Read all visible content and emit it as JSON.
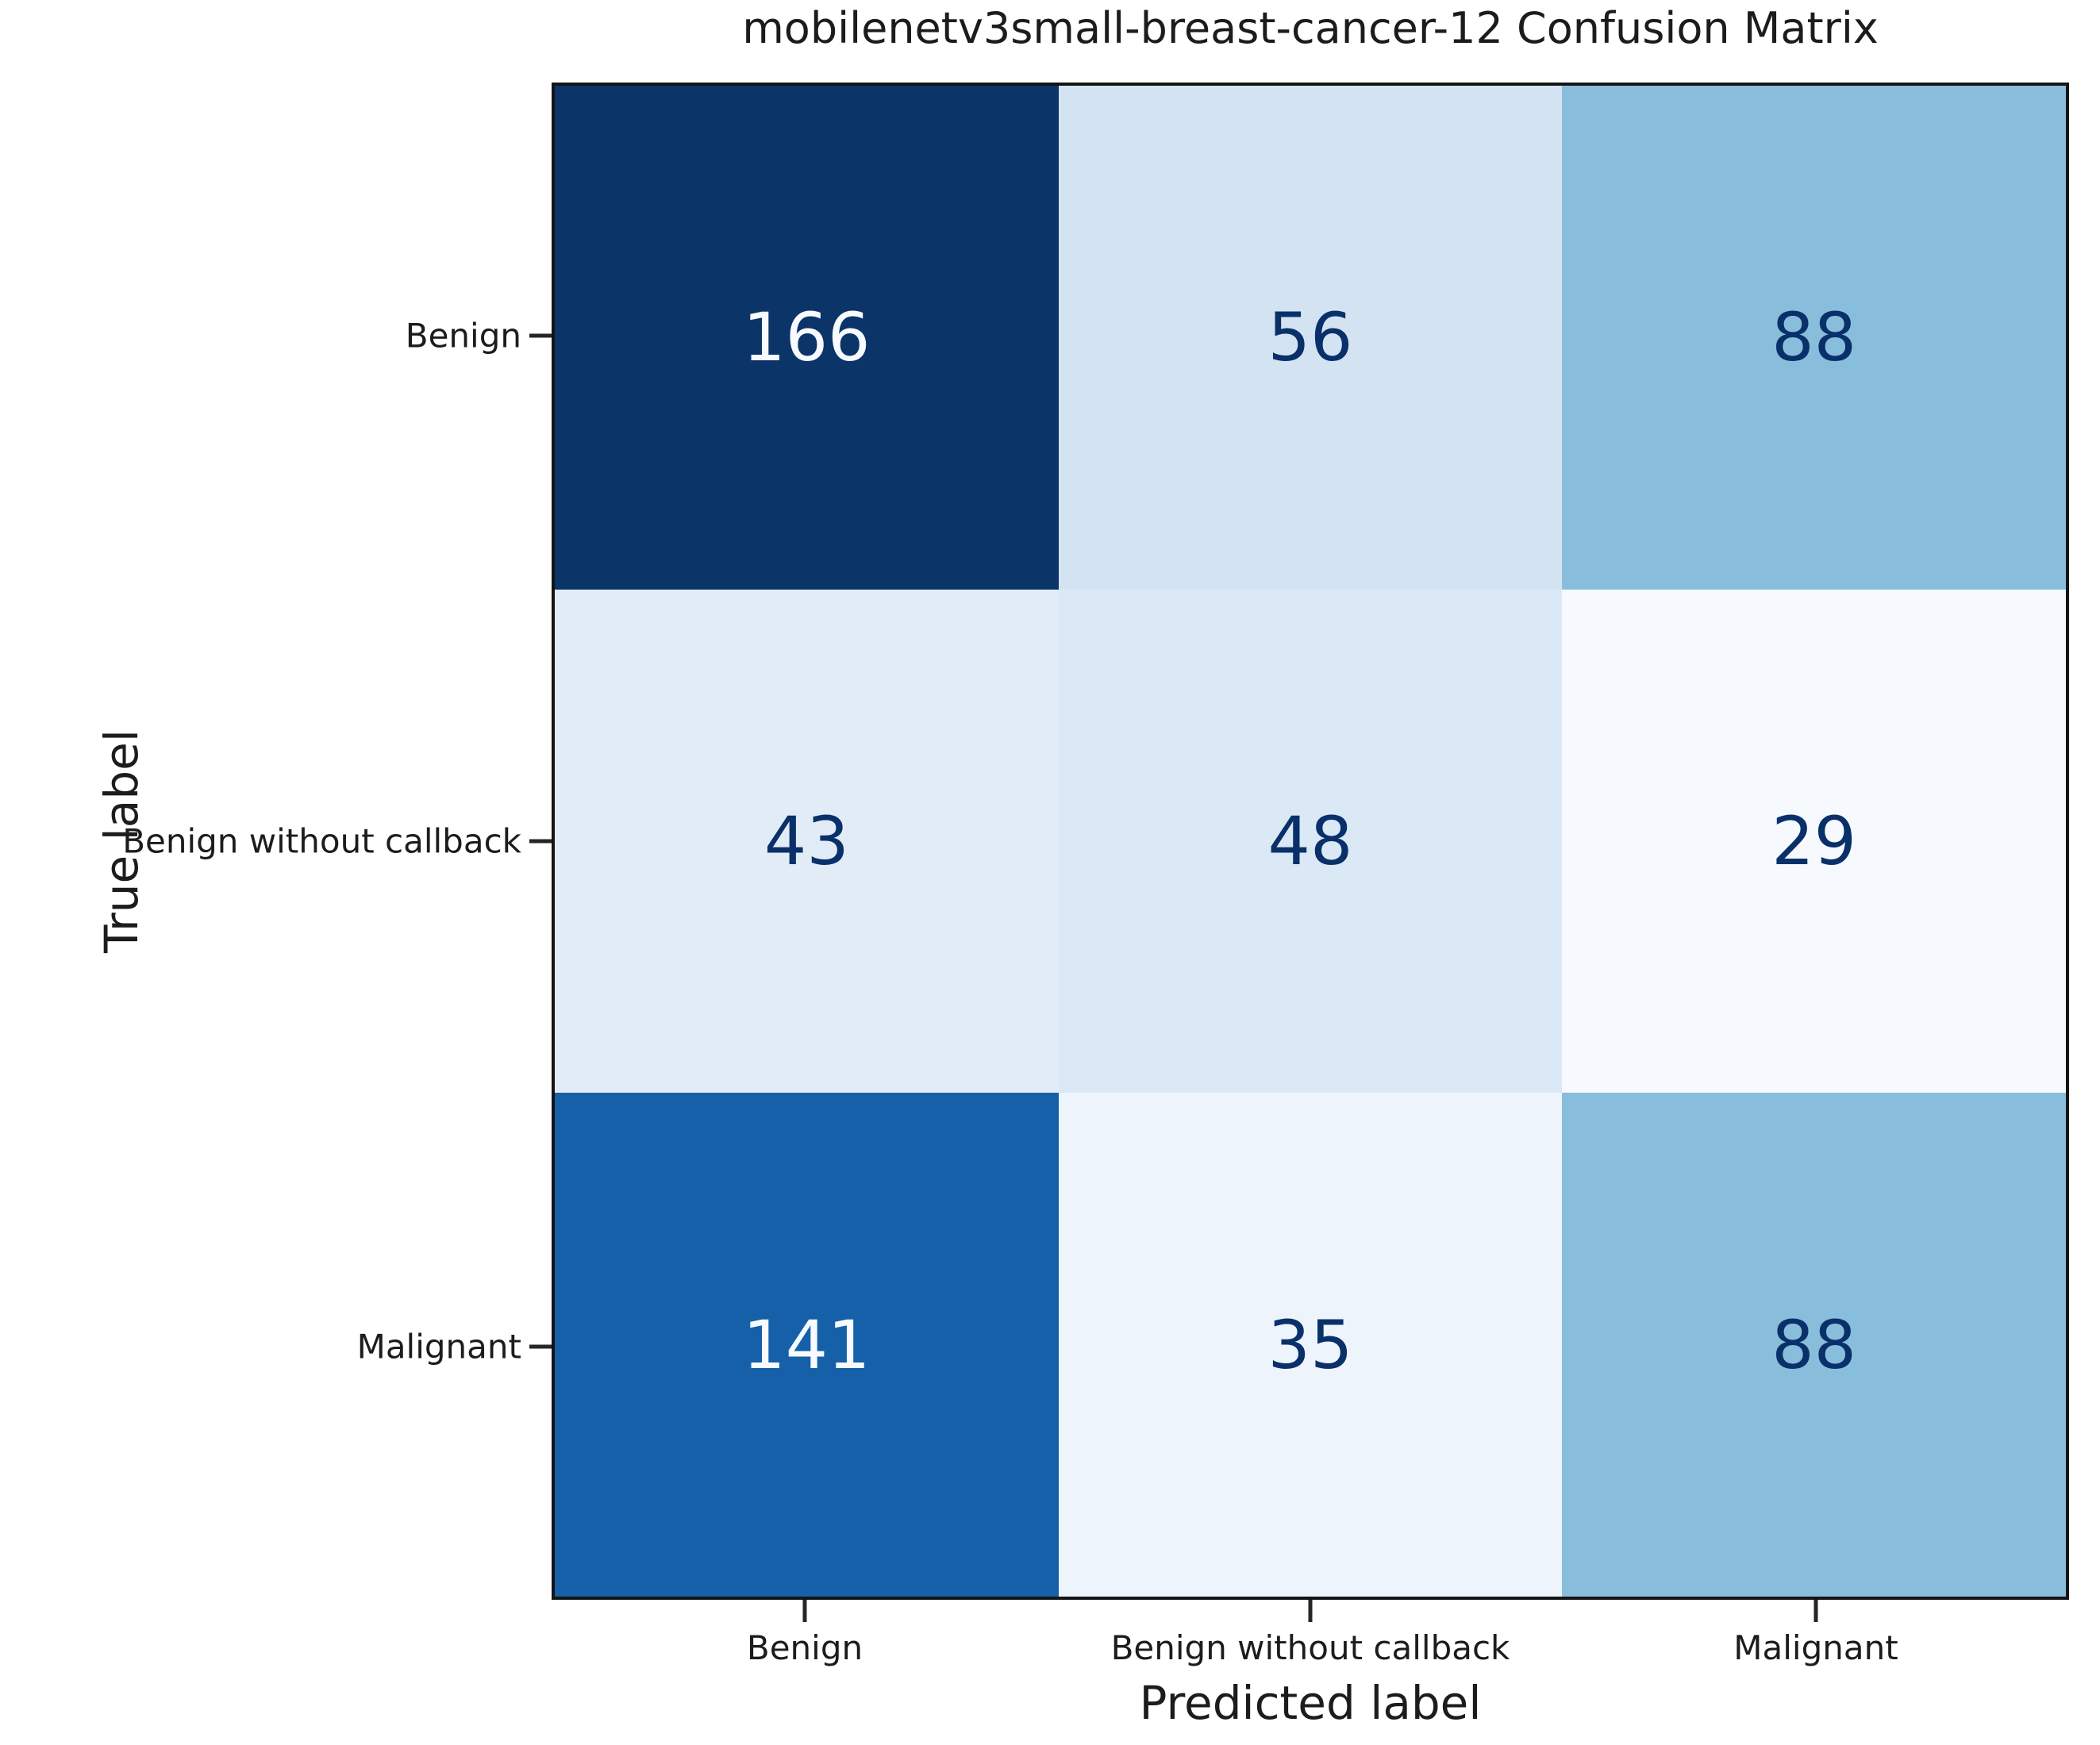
{
  "chart_data": {
    "type": "heatmap",
    "title": "mobilenetv3small-breast-cancer-12 Confusion Matrix",
    "xlabel": "Predicted label",
    "ylabel": "True label",
    "x_categories": [
      "Benign",
      "Benign without callback",
      "Malignant"
    ],
    "y_categories": [
      "Benign",
      "Benign without callback",
      "Malignant"
    ],
    "matrix": [
      [
        166,
        56,
        88
      ],
      [
        43,
        48,
        29
      ],
      [
        141,
        35,
        88
      ]
    ],
    "colormap": "Blues",
    "color_range": {
      "vmin": 29,
      "vmax": 166
    },
    "cell_colors": [
      [
        "#0b3468",
        "#d3e3f2",
        "#88bedc"
      ],
      [
        "#e2ecf7",
        "#dbe8f5",
        "#f6f9fd"
      ],
      [
        "#1560a9",
        "#edf4fb",
        "#88bedc"
      ]
    ],
    "text_colors": [
      [
        "#f7fbff",
        "#0a3069",
        "#0a3069"
      ],
      [
        "#0a3069",
        "#0a3069",
        "#0a3069"
      ],
      [
        "#f7fbff",
        "#0a3069",
        "#0a3069"
      ]
    ],
    "axis_color": "#141414",
    "grid": false,
    "legend": "none"
  }
}
